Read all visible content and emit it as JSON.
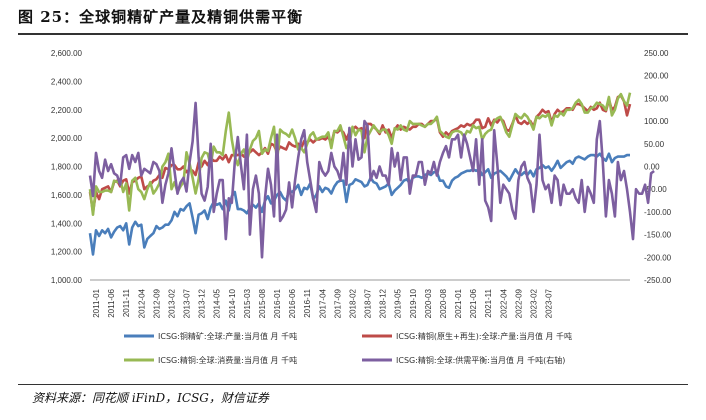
{
  "figure": {
    "title": "图 25：全球铜精矿产量及精铜供需平衡",
    "source": "资料来源：同花顺 iFinD，ICSG，财信证券"
  },
  "chart_data": {
    "type": "line",
    "title": "图 25：全球铜精矿产量及精铜供需平衡",
    "y_left": {
      "min": 1000,
      "max": 2600,
      "ticks": [
        "1,000.00",
        "1,200.00",
        "1,400.00",
        "1,600.00",
        "1,800.00",
        "2,000.00",
        "2,200.00",
        "2,400.00",
        "2,600.00"
      ]
    },
    "y_right": {
      "min": -250,
      "max": 250,
      "ticks": [
        "-250.00",
        "-200.00",
        "-150.00",
        "-100.00",
        "-50.00",
        "0.00",
        "50.00",
        "100.00",
        "150.00",
        "200.00",
        "250.00"
      ]
    },
    "x_labels": [
      "2011-01",
      "2011-06",
      "2011-11",
      "2012-04",
      "2012-09",
      "2013-02",
      "2013-07",
      "2013-12",
      "2014-05",
      "2014-10",
      "2015-03",
      "2015-08",
      "2016-01",
      "2016-06",
      "2016-11",
      "2017-04",
      "2017-09",
      "2018-02",
      "2018-07",
      "2018-12",
      "2019-05",
      "2019-10",
      "2020-03",
      "2020-08",
      "2021-01",
      "2021-06",
      "2021-11",
      "2022-04",
      "2022-09",
      "2023-02",
      "2023-07"
    ],
    "colors": {
      "mine": "#4a7ebb",
      "refined_production": "#be4b48",
      "refined_consumption": "#98b954",
      "balance": "#7d5fa0"
    },
    "series": [
      {
        "name": "ICSG:铜精矿:全球:产量:当月值 月 千吨",
        "axis": "left",
        "values": [
          1330,
          1180,
          1350,
          1310,
          1350,
          1330,
          1360,
          1300,
          1340,
          1370,
          1380,
          1350,
          1400,
          1250,
          1370,
          1410,
          1380,
          1390,
          1230,
          1290,
          1310,
          1330,
          1380,
          1360,
          1370,
          1390,
          1390,
          1420,
          1480,
          1450,
          1500,
          1490,
          1520,
          1540,
          1440,
          1330,
          1460,
          1470,
          1490,
          1430,
          1510,
          1550,
          1530,
          1540,
          1500,
          1560,
          1490,
          1590,
          1620,
          1500,
          1500,
          1490,
          1470,
          1510,
          1530,
          1510,
          1540,
          1480,
          1560,
          1590,
          1540,
          1560,
          1600,
          1620,
          1580,
          1560,
          1630,
          1620,
          1640,
          1670,
          1600,
          1650,
          1640,
          1680,
          1570,
          1600,
          1660,
          1620,
          1650,
          1640,
          1610,
          1660,
          1690,
          1700,
          1700,
          1550,
          1670,
          1680,
          1710,
          1700,
          1690,
          1660,
          1670,
          1720,
          1690,
          1680,
          1640,
          1650,
          1660,
          1680,
          1600,
          1630,
          1650,
          1670,
          1700,
          1710,
          1680,
          1720,
          1730,
          1730,
          1720,
          1740,
          1750,
          1740,
          1760,
          1760,
          1700,
          1700,
          1660,
          1650,
          1700,
          1720,
          1730,
          1750,
          1760,
          1770,
          1770,
          1780,
          1770,
          1780,
          1740,
          1760,
          1780,
          1720,
          1750,
          1760,
          1770,
          1750,
          1730,
          1700,
          1740,
          1780,
          1750,
          1740,
          1760,
          1740,
          1770,
          1730,
          1780,
          1790,
          1810,
          1790,
          1800,
          1770,
          1800,
          1840,
          1790,
          1810,
          1830,
          1840,
          1820,
          1860,
          1870,
          1860,
          1850,
          1870,
          1880,
          1880,
          1870,
          1890,
          1860,
          1840,
          1890,
          1830,
          1860,
          1870,
          1870,
          1870,
          1880,
          1880
        ]
      },
      {
        "name": "ICSG:精铜(原生+再生):全球:产量:当月值 月 千吨",
        "axis": "left",
        "values": [
          1620,
          1480,
          1620,
          1570,
          1640,
          1650,
          1660,
          1620,
          1690,
          1700,
          1660,
          1700,
          1710,
          1610,
          1690,
          1700,
          1720,
          1730,
          1640,
          1660,
          1670,
          1700,
          1710,
          1740,
          1720,
          1790,
          1780,
          1810,
          1810,
          1780,
          1780,
          1800,
          1760,
          1780,
          1770,
          1740,
          1830,
          1800,
          1840,
          1810,
          1860,
          1840,
          1840,
          1870,
          1850,
          1880,
          1830,
          1880,
          1880,
          1880,
          1890,
          1870,
          1910,
          1900,
          1920,
          1900,
          1880,
          1900,
          1930,
          1890,
          1960,
          1950,
          1900,
          1940,
          1930,
          1920,
          1970,
          1950,
          1940,
          1960,
          1930,
          1980,
          1970,
          1990,
          1970,
          1990,
          1990,
          2000,
          1990,
          2010,
          1960,
          2050,
          2040,
          2060,
          2040,
          1990,
          2040,
          2060,
          2080,
          2060,
          2070,
          2000,
          2100,
          2100,
          2080,
          2060,
          2030,
          2090,
          2040,
          2060,
          2000,
          2060,
          2090,
          2060,
          2080,
          2070,
          2060,
          2080,
          2080,
          2100,
          2100,
          2080,
          2100,
          2120,
          2120,
          2140,
          2040,
          2010,
          2040,
          2020,
          2050,
          2060,
          2070,
          2090,
          2080,
          2100,
          2090,
          2100,
          2130,
          2130,
          2070,
          2080,
          2140,
          2090,
          2130,
          2110,
          2140,
          2120,
          2060,
          2050,
          2100,
          2160,
          2110,
          2100,
          2120,
          2100,
          2120,
          2080,
          2150,
          2170,
          2200,
          2180,
          2190,
          2110,
          2170,
          2200,
          2180,
          2190,
          2210,
          2210,
          2200,
          2240,
          2240,
          2230,
          2210,
          2190,
          2220,
          2200,
          2210,
          2250,
          2200,
          2190,
          2270,
          2200,
          2220,
          2290,
          2300,
          2260,
          2160,
          2240
        ]
      },
      {
        "name": "ICSG:精铜:全球:消费量:当月值 月 千吨",
        "axis": "left",
        "values": [
          1640,
          1460,
          1660,
          1620,
          1620,
          1630,
          1630,
          1620,
          1700,
          1690,
          1710,
          1620,
          1680,
          1490,
          1700,
          1720,
          1640,
          1620,
          1570,
          1640,
          1690,
          1610,
          1640,
          1680,
          1800,
          1830,
          1890,
          1640,
          1690,
          1620,
          1660,
          1690,
          1900,
          1820,
          1720,
          1610,
          1710,
          1860,
          1900,
          1890,
          1810,
          1940,
          1900,
          1900,
          1880,
          2050,
          2180,
          1990,
          1870,
          1810,
          1890,
          1920,
          1840,
          1920,
          1980,
          2000,
          2050,
          1890,
          1920,
          1910,
          2000,
          2080,
          1830,
          2060,
          2040,
          2030,
          2010,
          2060,
          2000,
          1920,
          1930,
          1900,
          1960,
          2020,
          2040,
          1990,
          2000,
          2010,
          2010,
          2040,
          1930,
          2050,
          2050,
          2090,
          2010,
          1930,
          1960,
          2080,
          2020,
          2060,
          2050,
          1900,
          2010,
          2050,
          2090,
          2060,
          2040,
          2060,
          2060,
          2020,
          1960,
          2070,
          2060,
          2090,
          2060,
          2050,
          2120,
          2100,
          2100,
          2100,
          2090,
          2080,
          2100,
          2100,
          2120,
          2150,
          2050,
          2030,
          2010,
          2000,
          2040,
          2050,
          2050,
          2040,
          2010,
          2050,
          2040,
          2090,
          2070,
          2080,
          1990,
          2030,
          2050,
          2060,
          2120,
          2140,
          2150,
          2100,
          2040,
          2010,
          2090,
          2170,
          2150,
          2140,
          2170,
          2150,
          2110,
          2060,
          2150,
          2140,
          2160,
          2150,
          2170,
          2090,
          2160,
          2150,
          2180,
          2160,
          2200,
          2200,
          2210,
          2250,
          2270,
          2240,
          2180,
          2180,
          2210,
          2220,
          2250,
          2240,
          2230,
          2200,
          2290,
          2160,
          2200,
          2280,
          2310,
          2260,
          2230,
          2320
        ]
      },
      {
        "name": "ICSG:精铜:全球:供需平衡:当月值 月 千吨(右轴)",
        "axis": "right",
        "values": [
          -20,
          -65,
          30,
          -10,
          -25,
          15,
          -10,
          5,
          -15,
          -20,
          -40,
          20,
          25,
          -5,
          25,
          10,
          30,
          -20,
          -5,
          -10,
          -15,
          10,
          5,
          -10,
          -80,
          -40,
          -15,
          40,
          -10,
          -60,
          -35,
          -25,
          -55,
          10,
          55,
          140,
          20,
          -60,
          -75,
          -45,
          50,
          -100,
          -60,
          -30,
          -30,
          -160,
          -70,
          -80,
          10,
          65,
          5,
          -50,
          70,
          -150,
          -50,
          -20,
          -60,
          -200,
          -70,
          -5,
          -40,
          -110,
          70,
          -120,
          -110,
          -95,
          -35,
          -90,
          -30,
          20,
          60,
          80,
          10,
          -30,
          -70,
          -100,
          10,
          -10,
          -20,
          -10,
          30,
          0,
          -10,
          -30,
          30,
          -40,
          85,
          0,
          60,
          15,
          20,
          100,
          90,
          -30,
          -10,
          -25,
          0,
          -20,
          -20,
          -40,
          40,
          0,
          30,
          -30,
          20,
          20,
          -60,
          -20,
          -20,
          10,
          10,
          -40,
          -10,
          -15,
          10,
          -20,
          10,
          30,
          45,
          20,
          60,
          60,
          70,
          20,
          70,
          50,
          20,
          -10,
          60,
          -40,
          60,
          -75,
          -90,
          -120,
          80,
          5,
          -80,
          -40,
          -50,
          -60,
          -95,
          -115,
          -30,
          0,
          10,
          -25,
          -40,
          -100,
          -40,
          70,
          -30,
          -50,
          -40,
          -80,
          -20,
          -30,
          -85,
          -40,
          -60,
          -60,
          -50,
          -70,
          -80,
          -30,
          -100,
          -45,
          -60,
          -80,
          60,
          100,
          10,
          -110,
          -30,
          -60,
          -110,
          10,
          -30,
          -10,
          -50,
          -100,
          -160,
          -50,
          -60,
          -60,
          -40,
          -80,
          -15,
          -10
        ]
      }
    ],
    "legend": [
      "ICSG:铜精矿:全球:产量:当月值 月 千吨",
      "ICSG:精铜(原生+再生):全球:产量:当月值 月 千吨",
      "ICSG:精铜:全球:消费量:当月值 月 千吨",
      "ICSG:精铜:全球:供需平衡:当月值 月 千吨(右轴)"
    ]
  }
}
